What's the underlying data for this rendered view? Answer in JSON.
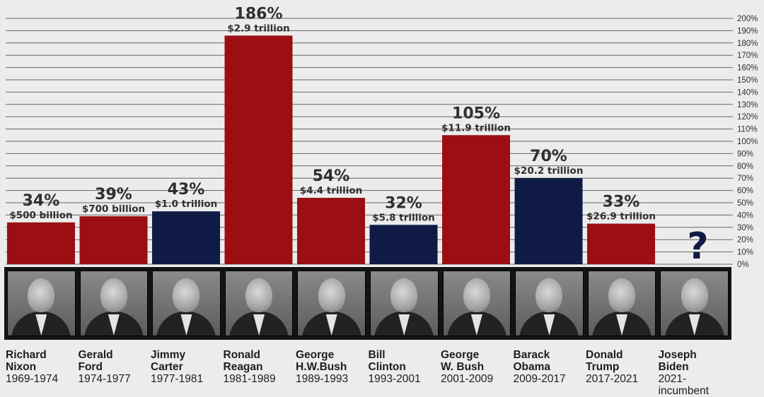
{
  "chart_data": {
    "type": "bar",
    "title": "",
    "xlabel": "",
    "ylabel": "",
    "ylim": [
      0,
      200
    ],
    "y_ticks": [
      "0%",
      "10%",
      "20%",
      "30%",
      "40%",
      "50%",
      "60%",
      "70%",
      "80%",
      "90%",
      "100%",
      "110%",
      "120%",
      "130%",
      "140%",
      "150%",
      "160%",
      "170%",
      "180%",
      "190%",
      "200%"
    ],
    "bars": [
      {
        "president_first": "Richard",
        "president_last": "Nixon",
        "years": "1969-1974",
        "value": 34,
        "percent_label": "34%",
        "debt_label": "$500 billion",
        "party": "R"
      },
      {
        "president_first": "Gerald",
        "president_last": "Ford",
        "years": "1974-1977",
        "value": 39,
        "percent_label": "39%",
        "debt_label": "$700 billion",
        "party": "R"
      },
      {
        "president_first": "Jimmy",
        "president_last": "Carter",
        "years": "1977-1981",
        "value": 43,
        "percent_label": "43%",
        "debt_label": "$1.0 trillion",
        "party": "D"
      },
      {
        "president_first": "Ronald",
        "president_last": "Reagan",
        "years": "1981-1989",
        "value": 186,
        "percent_label": "186%",
        "debt_label": "$2.9 trillion",
        "party": "R"
      },
      {
        "president_first": "George",
        "president_last": "H.W.Bush",
        "years": "1989-1993",
        "value": 54,
        "percent_label": "54%",
        "debt_label": "$4.4 trillion",
        "party": "R"
      },
      {
        "president_first": "Bill",
        "president_last": "Clinton",
        "years": "1993-2001",
        "value": 32,
        "percent_label": "32%",
        "debt_label": "$5.8 trillion",
        "party": "D"
      },
      {
        "president_first": "George",
        "president_last": "W. Bush",
        "years": "2001-2009",
        "value": 105,
        "percent_label": "105%",
        "debt_label": "$11.9 trillion",
        "party": "R"
      },
      {
        "president_first": "Barack",
        "president_last": "Obama",
        "years": "2009-2017",
        "value": 70,
        "percent_label": "70%",
        "debt_label": "$20.2 trillion",
        "party": "D"
      },
      {
        "president_first": "Donald",
        "president_last": "Trump",
        "years": "2017-2021",
        "value": 33,
        "percent_label": "33%",
        "debt_label": "$26.9 trillion",
        "party": "R"
      },
      {
        "president_first": "Joseph",
        "president_last": "Biden",
        "years": "2021-incumbent",
        "value": null,
        "percent_label": "?",
        "debt_label": "",
        "party": "D"
      }
    ]
  },
  "colors": {
    "R": "#9b0f12",
    "D": "#0f1a45",
    "unknown": "#0f1a45",
    "grid": "#3a3a3a",
    "text": "#2f2f2f"
  }
}
